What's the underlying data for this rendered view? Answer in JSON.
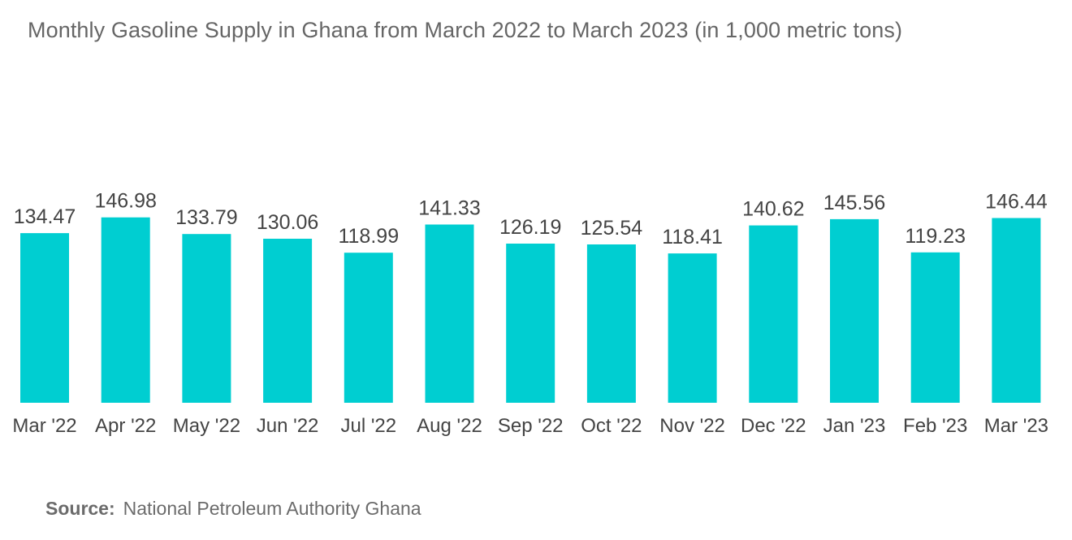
{
  "chart_data": {
    "type": "bar",
    "title": "Monthly Gasoline Supply in Ghana from March 2022 to March 2023 (in 1,000 metric tons)",
    "categories": [
      "Mar '22",
      "Apr '22",
      "May '22",
      "Jun '22",
      "Jul '22",
      "Aug '22",
      "Sep '22",
      "Oct '22",
      "Nov '22",
      "Dec '22",
      "Jan '23",
      "Feb '23",
      "Mar '23"
    ],
    "values": [
      134.47,
      146.98,
      133.79,
      130.06,
      118.99,
      141.33,
      126.19,
      125.54,
      118.41,
      140.62,
      145.56,
      119.23,
      146.44
    ],
    "value_labels": [
      "134.47",
      "146.98",
      "133.79",
      "130.06",
      "118.99",
      "141.33",
      "126.19",
      "125.54",
      "118.41",
      "140.62",
      "145.56",
      "119.23",
      "146.44"
    ],
    "xlabel": "",
    "ylabel": "",
    "ylim": [
      0,
      150
    ],
    "grid": false,
    "bar_color": "#00CED1"
  },
  "source": {
    "label": "Source:",
    "text": "National Petroleum Authority Ghana"
  }
}
